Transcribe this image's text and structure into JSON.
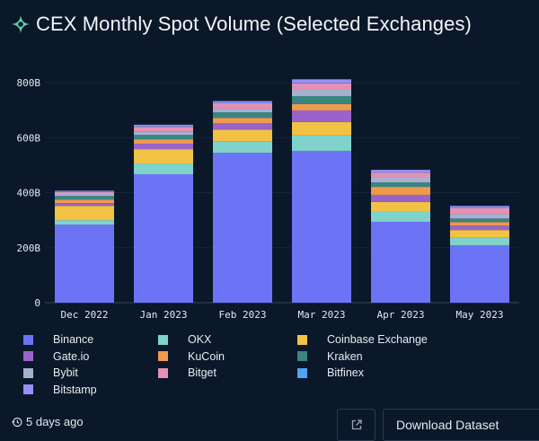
{
  "header": {
    "title": "CEX Monthly Spot Volume (Selected Exchanges)",
    "logo_icon": "sparkle-icon"
  },
  "colors": {
    "background": "#0b1829",
    "accent": "#5fd0b0"
  },
  "chart_data": {
    "type": "bar",
    "stacked": true,
    "title": "CEX Monthly Spot Volume (Selected Exchanges)",
    "xlabel": "",
    "ylabel": "",
    "ylim": [
      0,
      800
    ],
    "y_unit": "B",
    "yticks": [
      0,
      200,
      400,
      600,
      800
    ],
    "ytick_labels": [
      "0",
      "200B",
      "400B",
      "600B",
      "800B"
    ],
    "grid": true,
    "legend_position": "bottom",
    "categories": [
      "Dec 2022",
      "Jan 2023",
      "Feb 2023",
      "Mar 2023",
      "Apr 2023",
      "May 2023"
    ],
    "series": [
      {
        "name": "Binance",
        "color": "#6c74f5",
        "values": [
          284,
          467,
          545,
          552,
          294,
          209
        ]
      },
      {
        "name": "OKX",
        "color": "#7fd3cb",
        "values": [
          16,
          39,
          42,
          56,
          36,
          29
        ]
      },
      {
        "name": "Coinbase Exchange",
        "color": "#f2c244",
        "values": [
          52,
          52,
          42,
          49,
          36,
          26
        ]
      },
      {
        "name": "Gate.io",
        "color": "#9a63c9",
        "values": [
          10,
          20,
          23,
          42,
          26,
          16
        ]
      },
      {
        "name": "KuCoin",
        "color": "#ee9a4d",
        "values": [
          13,
          16,
          20,
          23,
          29,
          13
        ]
      },
      {
        "name": "Kraken",
        "color": "#3a8580",
        "values": [
          13,
          16,
          20,
          29,
          16,
          13
        ]
      },
      {
        "name": "Bybit",
        "color": "#a6b0cf",
        "values": [
          7,
          13,
          13,
          26,
          20,
          16
        ]
      },
      {
        "name": "Bitget",
        "color": "#e590b5",
        "values": [
          7,
          16,
          20,
          20,
          16,
          23
        ]
      },
      {
        "name": "Bitfinex",
        "color": "#4fa3f7",
        "values": [
          2,
          2,
          2,
          2,
          2,
          2
        ]
      },
      {
        "name": "Bitstamp",
        "color": "#9b8ff5",
        "values": [
          3,
          6,
          6,
          13,
          8,
          5
        ]
      }
    ]
  },
  "legend": {
    "items": [
      {
        "label": "Binance",
        "color": "#6c74f5"
      },
      {
        "label": "OKX",
        "color": "#7fd3cb"
      },
      {
        "label": "Coinbase Exchange",
        "color": "#f2c244"
      },
      {
        "label": "Gate.io",
        "color": "#9a63c9"
      },
      {
        "label": "KuCoin",
        "color": "#ee9a4d"
      },
      {
        "label": "Kraken",
        "color": "#3a8580"
      },
      {
        "label": "Bybit",
        "color": "#a6b0cf"
      },
      {
        "label": "Bitget",
        "color": "#e590b5"
      },
      {
        "label": "Bitfinex",
        "color": "#4fa3f7"
      },
      {
        "label": "Bitstamp",
        "color": "#9b8ff5"
      }
    ]
  },
  "footer": {
    "age_icon": "history-icon",
    "age_text": "5 days ago",
    "external_link_icon": "external-link-icon",
    "download_label": "Download Dataset"
  }
}
